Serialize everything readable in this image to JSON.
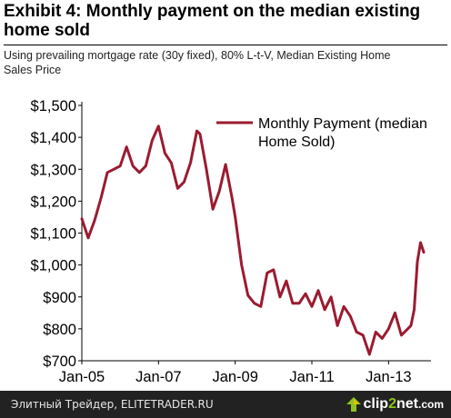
{
  "header": {
    "title_line1": "Exhibit 4: Monthly payment on the median existing",
    "title_line2": "home sold",
    "subtitle_line1": "Using prevailing mortgage rate (30y fixed), 80% L-t-V, Median Existing Home",
    "subtitle_line2": "Sales Price"
  },
  "footer": {
    "watermark": "Элитный Трейдер, ELITETRADER.RU",
    "brand_part1": "clip",
    "brand_part2": "2",
    "brand_part3": "net",
    "brand_part4": ".com"
  },
  "chart_data": {
    "type": "line",
    "title": "Exhibit 4: Monthly payment on the median existing home sold",
    "xlabel": "",
    "ylabel": "",
    "ylim": [
      700,
      1500
    ],
    "yticks": [
      700,
      800,
      900,
      1000,
      1100,
      1200,
      1300,
      1400,
      1500
    ],
    "ytick_labels": [
      "$700",
      "$800",
      "$900",
      "$1,000",
      "$1,100",
      "$1,200",
      "$1,300",
      "$1,400",
      "$1,500"
    ],
    "xticks": [
      "Jan-05",
      "Jan-07",
      "Jan-09",
      "Jan-11",
      "Jan-13"
    ],
    "xrange": [
      "2005-01",
      "2013-07"
    ],
    "grid": false,
    "legend_position": "top-right",
    "color": "#9b1b30",
    "series": [
      {
        "name": "Monthly Payment (median Home Sold)",
        "points": [
          [
            "2005-01",
            1145
          ],
          [
            "2005-03",
            1085
          ],
          [
            "2005-05",
            1140
          ],
          [
            "2005-07",
            1210
          ],
          [
            "2005-09",
            1290
          ],
          [
            "2005-11",
            1300
          ],
          [
            "2006-01",
            1310
          ],
          [
            "2006-02",
            1340
          ],
          [
            "2006-03",
            1370
          ],
          [
            "2006-05",
            1310
          ],
          [
            "2006-07",
            1290
          ],
          [
            "2006-09",
            1310
          ],
          [
            "2006-11",
            1390
          ],
          [
            "2007-01",
            1435
          ],
          [
            "2007-03",
            1350
          ],
          [
            "2007-05",
            1320
          ],
          [
            "2007-07",
            1240
          ],
          [
            "2007-09",
            1260
          ],
          [
            "2007-11",
            1320
          ],
          [
            "2008-01",
            1420
          ],
          [
            "2008-02",
            1410
          ],
          [
            "2008-04",
            1300
          ],
          [
            "2008-06",
            1175
          ],
          [
            "2008-08",
            1230
          ],
          [
            "2008-10",
            1315
          ],
          [
            "2008-12",
            1210
          ],
          [
            "2009-01",
            1150
          ],
          [
            "2009-03",
            1000
          ],
          [
            "2009-05",
            905
          ],
          [
            "2009-07",
            880
          ],
          [
            "2009-09",
            870
          ],
          [
            "2009-11",
            975
          ],
          [
            "2010-01",
            985
          ],
          [
            "2010-03",
            900
          ],
          [
            "2010-05",
            950
          ],
          [
            "2010-07",
            880
          ],
          [
            "2010-09",
            880
          ],
          [
            "2010-11",
            910
          ],
          [
            "2011-01",
            870
          ],
          [
            "2011-03",
            920
          ],
          [
            "2011-05",
            860
          ],
          [
            "2011-07",
            900
          ],
          [
            "2011-09",
            810
          ],
          [
            "2011-11",
            870
          ],
          [
            "2012-01",
            840
          ],
          [
            "2012-03",
            790
          ],
          [
            "2012-05",
            780
          ],
          [
            "2012-07",
            720
          ],
          [
            "2012-09",
            790
          ],
          [
            "2012-11",
            770
          ],
          [
            "2013-01",
            800
          ],
          [
            "2013-03",
            850
          ],
          [
            "2013-05",
            780
          ],
          [
            "2013-07",
            800
          ],
          [
            "2013-08",
            810
          ],
          [
            "2013-09",
            860
          ],
          [
            "2013-10",
            1010
          ],
          [
            "2013-11",
            1070
          ],
          [
            "2013-12",
            1040
          ]
        ]
      }
    ]
  }
}
